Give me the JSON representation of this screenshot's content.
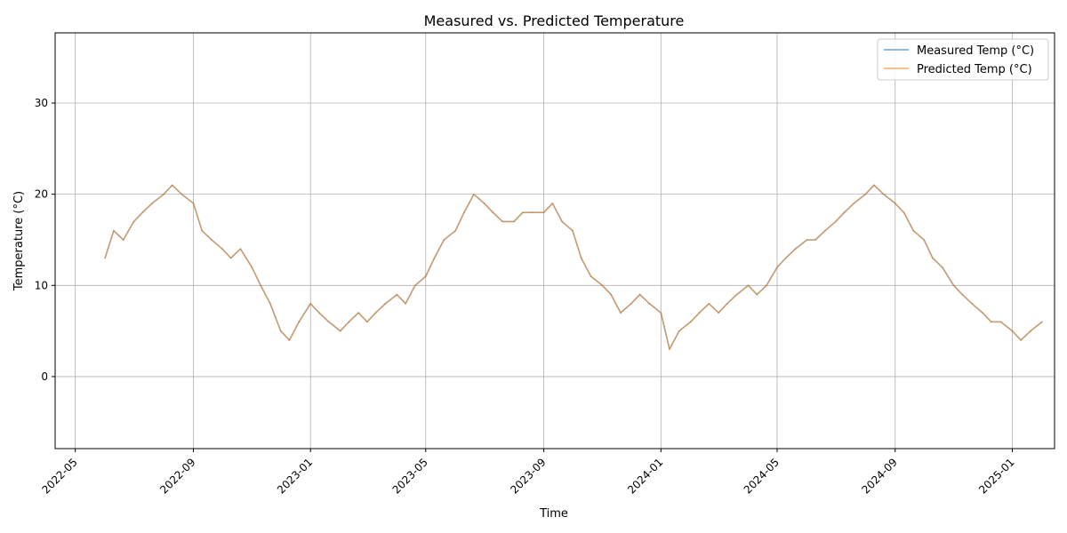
{
  "chart_data": {
    "type": "line",
    "title": "Measured vs. Predicted Temperature",
    "xlabel": "Time",
    "ylabel": "Temperature (°C)",
    "x_range": [
      "2022-04-10",
      "2025-02-14"
    ],
    "ylim": [
      -7.9,
      37.7
    ],
    "grid": true,
    "legend": "top-right",
    "x_ticks": [
      "2022-05",
      "2022-09",
      "2023-01",
      "2023-05",
      "2023-09",
      "2024-01",
      "2024-05",
      "2024-09",
      "2025-01"
    ],
    "y_ticks": [
      0,
      10,
      20,
      30
    ],
    "series": [
      {
        "name": "Measured Temp (°C)",
        "color": "#1f77b4",
        "x": [
          "2022-06-01",
          "2022-06-10",
          "2022-06-20",
          "2022-07-01",
          "2022-07-10",
          "2022-07-20",
          "2022-08-01",
          "2022-08-10",
          "2022-08-20",
          "2022-09-01",
          "2022-09-10",
          "2022-09-20",
          "2022-10-01",
          "2022-10-10",
          "2022-10-20",
          "2022-11-01",
          "2022-11-10",
          "2022-11-20",
          "2022-12-01",
          "2022-12-10",
          "2022-12-20",
          "2023-01-01",
          "2023-01-10",
          "2023-01-20",
          "2023-02-01",
          "2023-02-10",
          "2023-02-20",
          "2023-03-01",
          "2023-03-10",
          "2023-03-20",
          "2023-04-01",
          "2023-04-10",
          "2023-04-20",
          "2023-05-01",
          "2023-05-10",
          "2023-05-20",
          "2023-06-01",
          "2023-06-10",
          "2023-06-20",
          "2023-07-01",
          "2023-07-10",
          "2023-07-20",
          "2023-08-01",
          "2023-08-10",
          "2023-08-20",
          "2023-09-01",
          "2023-09-10",
          "2023-09-20",
          "2023-10-01",
          "2023-10-10",
          "2023-10-20",
          "2023-11-01",
          "2023-11-10",
          "2023-11-20",
          "2023-12-01",
          "2023-12-10",
          "2023-12-20",
          "2024-01-01",
          "2024-01-10",
          "2024-01-20",
          "2024-02-01",
          "2024-02-10",
          "2024-02-20",
          "2024-03-01",
          "2024-03-10",
          "2024-03-20",
          "2024-04-01",
          "2024-04-10",
          "2024-04-20",
          "2024-05-01",
          "2024-05-10",
          "2024-05-20",
          "2024-06-01",
          "2024-06-10",
          "2024-06-20",
          "2024-07-01",
          "2024-07-10",
          "2024-07-20",
          "2024-08-01",
          "2024-08-10",
          "2024-08-20",
          "2024-09-01",
          "2024-09-10",
          "2024-09-20",
          "2024-10-01",
          "2024-10-10",
          "2024-10-20",
          "2024-11-01",
          "2024-11-10",
          "2024-11-20",
          "2024-12-01",
          "2024-12-10",
          "2024-12-20",
          "2025-01-01",
          "2025-01-10",
          "2025-01-20",
          "2025-02-01"
        ],
        "values": [
          13,
          16,
          15,
          17,
          18,
          19,
          20,
          21,
          20,
          19,
          16,
          15,
          14,
          13,
          14,
          12,
          10,
          8,
          5,
          4,
          6,
          8,
          7,
          6,
          5,
          6,
          7,
          6,
          7,
          8,
          9,
          8,
          10,
          11,
          13,
          15,
          16,
          18,
          20,
          19,
          18,
          17,
          17,
          18,
          18,
          18,
          19,
          17,
          16,
          13,
          11,
          10,
          9,
          7,
          8,
          9,
          8,
          7,
          3,
          5,
          6,
          7,
          8,
          7,
          8,
          9,
          10,
          9,
          10,
          12,
          13,
          14,
          15,
          15,
          16,
          17,
          18,
          19,
          20,
          21,
          20,
          19,
          18,
          16,
          15,
          13,
          12,
          10,
          9,
          8,
          7,
          6,
          6,
          5,
          4,
          5,
          6
        ]
      },
      {
        "name": "Predicted Temp (°C)",
        "color": "#ff7f0e",
        "x": [
          "2022-06-01",
          "2022-06-10",
          "2022-06-20",
          "2022-07-01",
          "2022-07-10",
          "2022-07-20",
          "2022-08-01",
          "2022-08-10",
          "2022-08-20",
          "2022-09-01",
          "2022-09-10",
          "2022-09-20",
          "2022-10-01",
          "2022-10-10",
          "2022-10-20",
          "2022-11-01",
          "2022-11-10",
          "2022-11-20",
          "2022-12-01",
          "2022-12-10",
          "2022-12-20",
          "2023-01-01",
          "2023-01-10",
          "2023-01-20",
          "2023-02-01",
          "2023-02-10",
          "2023-02-20",
          "2023-03-01",
          "2023-03-10",
          "2023-03-20",
          "2023-04-01",
          "2023-04-10",
          "2023-04-20",
          "2023-05-01",
          "2023-05-10",
          "2023-05-20",
          "2023-06-01",
          "2023-06-10",
          "2023-06-20",
          "2023-07-01",
          "2023-07-10",
          "2023-07-20",
          "2023-08-01",
          "2023-08-10",
          "2023-08-20",
          "2023-09-01",
          "2023-09-10",
          "2023-09-20",
          "2023-10-01",
          "2023-10-10",
          "2023-10-20",
          "2023-11-01",
          "2023-11-10",
          "2023-11-20",
          "2023-12-01",
          "2023-12-10",
          "2023-12-20",
          "2024-01-01",
          "2024-01-10",
          "2024-01-20",
          "2024-02-01",
          "2024-02-10",
          "2024-02-20",
          "2024-03-01",
          "2024-03-10",
          "2024-03-20",
          "2024-04-01",
          "2024-04-10",
          "2024-04-20",
          "2024-05-01",
          "2024-05-10",
          "2024-05-20",
          "2024-06-01",
          "2024-06-10",
          "2024-06-20",
          "2024-07-01",
          "2024-07-10",
          "2024-07-20",
          "2024-08-01",
          "2024-08-10",
          "2024-08-20",
          "2024-09-01",
          "2024-09-10",
          "2024-09-20",
          "2024-10-01",
          "2024-10-10",
          "2024-10-20",
          "2024-11-01",
          "2024-11-10",
          "2024-11-20",
          "2024-12-01",
          "2024-12-10",
          "2024-12-20",
          "2025-01-01",
          "2025-01-10",
          "2025-01-20",
          "2025-02-01"
        ],
        "values": [
          13,
          16,
          15,
          17,
          18,
          19,
          20,
          21,
          20,
          19,
          16,
          15,
          14,
          13,
          14,
          12,
          10,
          8,
          5,
          4,
          6,
          8,
          7,
          6,
          5,
          6,
          7,
          6,
          7,
          8,
          9,
          8,
          10,
          11,
          13,
          15,
          16,
          18,
          20,
          19,
          18,
          17,
          17,
          18,
          18,
          18,
          19,
          17,
          16,
          13,
          11,
          10,
          9,
          7,
          8,
          9,
          8,
          7,
          3,
          5,
          6,
          7,
          8,
          7,
          8,
          9,
          10,
          9,
          10,
          12,
          13,
          14,
          15,
          15,
          16,
          17,
          18,
          19,
          20,
          21,
          20,
          19,
          18,
          16,
          15,
          13,
          12,
          10,
          9,
          8,
          7,
          6,
          6,
          5,
          4,
          5,
          6
        ]
      }
    ]
  }
}
